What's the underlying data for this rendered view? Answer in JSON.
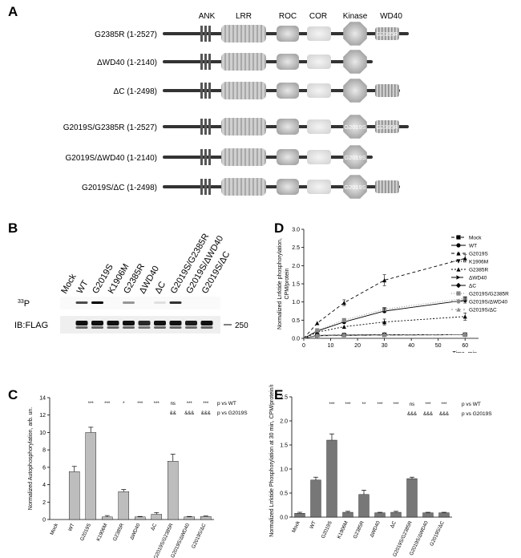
{
  "panels": {
    "a": "A",
    "b": "B",
    "c": "C",
    "d": "D",
    "e": "E"
  },
  "domains": [
    "ANK",
    "LRR",
    "ROC",
    "COR",
    "Kinase",
    "WD40"
  ],
  "constructs": [
    {
      "label": "G2385R (1-2527)",
      "length": "full",
      "kinase_text": "",
      "wd40_text": "G2385R"
    },
    {
      "label": "ΔWD40 (1-2140)",
      "length": "noWD40",
      "kinase_text": "",
      "wd40_text": ""
    },
    {
      "label": "ΔC (1-2498)",
      "length": "wd40end",
      "kinase_text": "",
      "wd40_text": ""
    },
    {
      "label": "G2019S/G2385R (1-2527)",
      "length": "full",
      "kinase_text": "G2019S",
      "wd40_text": "G2385R"
    },
    {
      "label": "G2019S/ΔWD40 (1-2140)",
      "length": "noWD40",
      "kinase_text": "G2019S",
      "wd40_text": ""
    },
    {
      "label": "G2019S/ΔC (1-2498)",
      "length": "wd40end",
      "kinase_text": "G2019S",
      "wd40_text": ""
    }
  ],
  "blot": {
    "lanes": [
      "Mock",
      "WT",
      "G2019S",
      "K1906M",
      "G2385R",
      "ΔWD40",
      "ΔC",
      "G2019S/G2385R",
      "G2019S/ΔWD40",
      "G2019S/ΔC"
    ],
    "row1_label_sup": "33",
    "row1_label": "P",
    "row2_label": "IB:FLAG",
    "marker": "250",
    "p33_intensity": [
      0,
      0.7,
      1.0,
      0,
      0.4,
      0,
      0.1,
      0.8,
      0,
      0
    ],
    "flag_intensity": [
      0,
      1,
      1,
      1,
      1,
      0.9,
      1,
      1,
      0.95,
      1
    ]
  },
  "chart_data": [
    {
      "type": "bar",
      "panel": "C",
      "categories": [
        "Mock",
        "WT",
        "G2019S",
        "K1906M",
        "G2385R",
        "ΔWD40",
        "ΔC",
        "G2019S/G2385R",
        "G2019S/ΔWD40",
        "G2019S/ΔC"
      ],
      "values": [
        0,
        5.5,
        10.0,
        0.3,
        3.2,
        0.3,
        0.6,
        6.7,
        0.3,
        0.35
      ],
      "errors": [
        0,
        0.6,
        0.6,
        0.15,
        0.25,
        0.05,
        0.2,
        0.8,
        0.05,
        0.05
      ],
      "ylabel": "Normalized Autophosphorylation, arb. un.",
      "ylim": [
        0,
        14
      ],
      "yticks": [
        0,
        2,
        4,
        6,
        8,
        10,
        12,
        14
      ],
      "sig_wt": [
        "",
        "",
        "***",
        "***",
        "*",
        "***",
        "***",
        "ns",
        "***",
        "***"
      ],
      "sig_g2019s": [
        "",
        "",
        "",
        "",
        "",
        "",
        "",
        "&&",
        "&&&",
        "&&&"
      ],
      "legend_wt": "p vs WT",
      "legend_g2019s": "p vs G2019S",
      "bar_color": "#bdbdbd"
    },
    {
      "type": "line",
      "panel": "D",
      "xlabel": "Time, min",
      "ylabel": "Normalized Lrrktide phosphorylation, CPM/protein",
      "xlim": [
        0,
        65
      ],
      "ylim": [
        0,
        3.0
      ],
      "xticks": [
        0,
        10,
        20,
        30,
        40,
        50,
        60
      ],
      "yticks": [
        0.0,
        0.5,
        1.0,
        1.5,
        2.0,
        2.5,
        3.0
      ],
      "x": [
        0,
        5,
        15,
        30,
        60
      ],
      "series": [
        {
          "name": "Mock",
          "values": [
            0,
            0.08,
            0.09,
            0.1,
            0.1
          ],
          "marker": "square",
          "dash": "4,2",
          "color": "#000000"
        },
        {
          "name": "WT",
          "values": [
            0,
            0.2,
            0.45,
            0.75,
            1.05
          ],
          "marker": "circle",
          "dash": "",
          "color": "#000000"
        },
        {
          "name": "G2019S",
          "values": [
            0,
            0.42,
            0.98,
            1.6,
            2.2
          ],
          "marker": "triangle",
          "dash": "4,3",
          "color": "#000000"
        },
        {
          "name": "K1906M",
          "values": [
            0,
            0.07,
            0.08,
            0.09,
            0.1
          ],
          "marker": "tridown",
          "dash": "1,2",
          "color": "#000000"
        },
        {
          "name": "G2385R",
          "values": [
            0,
            0.17,
            0.32,
            0.45,
            0.6
          ],
          "marker": "triangle",
          "dash": "2,2",
          "color": "#000000"
        },
        {
          "name": "ΔWD40",
          "values": [
            0,
            0.07,
            0.08,
            0.09,
            0.1
          ],
          "marker": "tri-right",
          "dash": "6,3",
          "color": "#000000"
        },
        {
          "name": "ΔC",
          "values": [
            0,
            0.08,
            0.09,
            0.1,
            0.1
          ],
          "marker": "diamond",
          "dash": "",
          "color": "#000000"
        },
        {
          "name": "G2019S/G2385R",
          "values": [
            0,
            0.22,
            0.5,
            0.8,
            1.1
          ],
          "marker": "square",
          "dash": "1,2",
          "color": "#888888"
        },
        {
          "name": "G2019S/ΔWD40",
          "values": [
            0,
            0.07,
            0.08,
            0.09,
            0.1
          ],
          "marker": "circle",
          "dash": "4,2",
          "color": "#888888"
        },
        {
          "name": "G2019S/ΔC",
          "values": [
            0,
            0.08,
            0.09,
            0.1,
            0.1
          ],
          "marker": "triangle",
          "dash": "2,3",
          "color": "#888888"
        }
      ],
      "legend_position": "top-right"
    },
    {
      "type": "bar",
      "panel": "E",
      "categories": [
        "Mock",
        "WT",
        "G2019S",
        "K1906M",
        "G2385R",
        "ΔWD40",
        "ΔC",
        "G2019S/G2385R",
        "G2019S/ΔWD40",
        "G2019S/ΔC"
      ],
      "values": [
        0.08,
        0.77,
        1.6,
        0.1,
        0.47,
        0.09,
        0.1,
        0.8,
        0.09,
        0.09
      ],
      "errors": [
        0.02,
        0.06,
        0.13,
        0.02,
        0.09,
        0.01,
        0.02,
        0.03,
        0.01,
        0.01
      ],
      "ylabel": "Normalized Lrrktide Phosphorylation at 30 min, CPM/protein/min",
      "ylim": [
        0,
        2.5
      ],
      "yticks": [
        0.0,
        0.5,
        1.0,
        1.5,
        2.0,
        2.5
      ],
      "sig_wt": [
        "",
        "",
        "***",
        "***",
        "**",
        "***",
        "***",
        "ns",
        "***",
        "***"
      ],
      "sig_g2019s": [
        "",
        "",
        "",
        "",
        "",
        "",
        "",
        "&&&",
        "&&&",
        "&&&"
      ],
      "legend_wt": "p vs WT",
      "legend_g2019s": "p vs G2019S",
      "bar_color": "#777777"
    }
  ]
}
